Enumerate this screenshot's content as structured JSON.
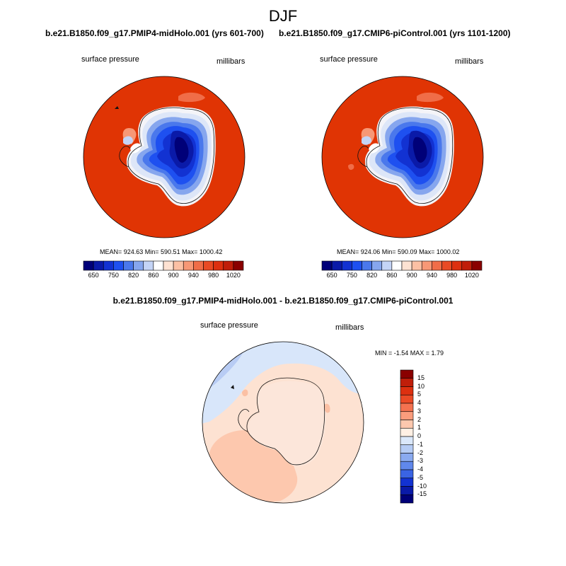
{
  "page": {
    "season": "DJF"
  },
  "panels": [
    {
      "title": "b.e21.B1850.f09_g17.PMIP4-midHolo.001 (yrs 601-700)",
      "variable": "surface pressure",
      "units": "millibars",
      "stats": "MEAN= 924.63  Min= 590.51  Max= 1000.42"
    },
    {
      "title": "b.e21.B1850.f09_g17.CMIP6-piControl.001 (yrs 1101-1200)",
      "variable": "surface pressure",
      "units": "millibars",
      "stats": "MEAN= 924.06  Min= 590.09  Max= 1000.02"
    }
  ],
  "diff_panel": {
    "title": "b.e21.B1850.f09_g17.PMIP4-midHolo.001 - b.e21.B1850.f09_g17.CMIP6-piControl.001",
    "variable": "surface pressure",
    "units": "millibars",
    "stats": "MIN =  -1.54 MAX =   1.79"
  },
  "colorbar_abs": {
    "ticks": [
      "650",
      "750",
      "820",
      "860",
      "900",
      "940",
      "980",
      "1020"
    ],
    "colors": [
      "#000078",
      "#0a1aa8",
      "#1232d2",
      "#1e50f0",
      "#4a78ec",
      "#86a6ee",
      "#c4d4f6",
      "#ffffff",
      "#fde2d2",
      "#fbc0a4",
      "#f79876",
      "#f06d48",
      "#e94a24",
      "#dd3010",
      "#c01e0a",
      "#8a0000"
    ]
  },
  "colorbar_diff": {
    "ticks": [
      "15",
      "10",
      "5",
      "4",
      "3",
      "2",
      "1",
      "0",
      "-1",
      "-2",
      "-3",
      "-4",
      "-5",
      "-10",
      "-15"
    ],
    "colors": [
      "#8a0000",
      "#c01e0a",
      "#dd3010",
      "#ea4a26",
      "#f47250",
      "#fa9c7c",
      "#fdc8ae",
      "#fff0e4",
      "#dbe8fa",
      "#b6ccf4",
      "#8aaaf0",
      "#6088ec",
      "#3a64e4",
      "#1232d2",
      "#0a1aa8",
      "#000078"
    ]
  }
}
